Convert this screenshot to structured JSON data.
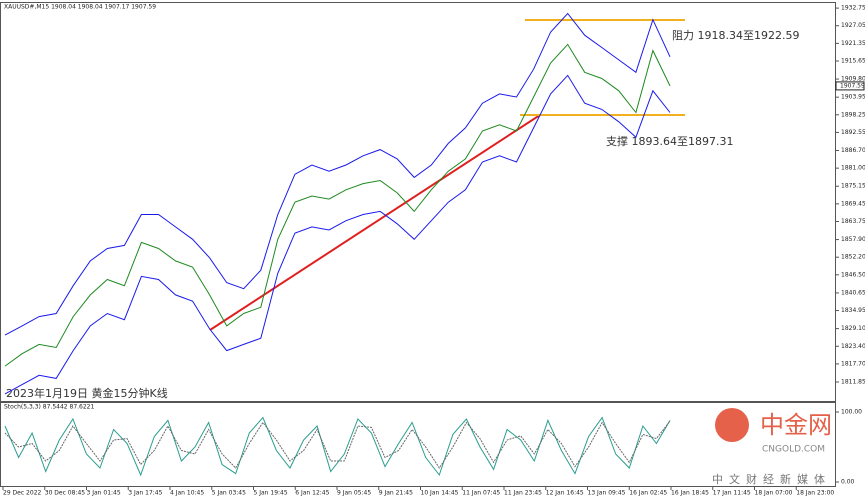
{
  "chart_data": [
    {
      "type": "line",
      "title": "XAUUSD#,M15  1908.04 1908.04 1907.17 1907.59",
      "annotations": [
        "阻力 1918.34至1922.59",
        "支撑 1893.64至1897.31",
        "2023年1月19日 黄金15分钟K线"
      ],
      "x_labels": [
        "29 Dec 2022",
        "30 Dec 08:45",
        "3 Jan 01:45",
        "3 Jan 17:45",
        "4 Jan 10:45",
        "5 Jan 03:45",
        "5 Jan 19:45",
        "6 Jan 12:45",
        "9 Jan 05:45",
        "9 Jan 21:45",
        "10 Jan 14:45",
        "11 Jan 07:45",
        "11 Jan 23:45",
        "12 Jan 16:45",
        "13 Jan 09:45",
        "16 Jan 02:45",
        "16 Jan 18:45",
        "17 Jan 11:45",
        "18 Jan 07:00",
        "18 Jan 23:00"
      ],
      "series": [
        {
          "color": "#1f8a1f",
          "values": [
            1817,
            1821,
            1824,
            1823,
            1833,
            1840,
            1845,
            1843,
            1857,
            1855,
            1851,
            1849,
            1840,
            1830,
            1834,
            1836,
            1858,
            1870,
            1872,
            1871,
            1874,
            1876,
            1877,
            1873,
            1867,
            1874,
            1880,
            1884,
            1893,
            1895,
            1893,
            1904,
            1915,
            1921,
            1912,
            1910,
            1906,
            1899,
            1919,
            1907.59
          ]
        },
        {
          "color": "#1a1aee",
          "values": [
            1827,
            1830,
            1833,
            1834,
            1843,
            1851,
            1855,
            1856,
            1866,
            1866,
            1862,
            1858,
            1852,
            1844,
            1842,
            1848,
            1866,
            1879,
            1882,
            1880,
            1882,
            1885,
            1887,
            1884,
            1878,
            1882,
            1889,
            1894,
            1902,
            1905,
            1904,
            1913,
            1925,
            1931,
            1924,
            1920,
            1916,
            1912,
            1929,
            1917
          ]
        },
        {
          "color": "#1a1aee",
          "values": [
            1808,
            1811,
            1814,
            1813,
            1822,
            1830,
            1834,
            1832,
            1846,
            1845,
            1840,
            1838,
            1829,
            1822,
            1824,
            1826,
            1847,
            1860,
            1862,
            1861,
            1864,
            1866,
            1867,
            1863,
            1858,
            1864,
            1870,
            1874,
            1883,
            1885,
            1883,
            1894,
            1905,
            1911,
            1902,
            1900,
            1896,
            1891,
            1906,
            1899
          ]
        }
      ],
      "ylim": [
        1805.7,
        1934.4
      ],
      "yticks": [
        1932.75,
        1927.05,
        1921.35,
        1915.65,
        {
          "value": 1909.8,
          "label": "1909.80"
        },
        1903.95,
        1898.25,
        1892.55,
        {
          "value": 1886.7,
          "label": "1886.70"
        },
        {
          "value": 1881,
          "label": "1881.00"
        },
        1875.15,
        1869.45,
        1863.75,
        {
          "value": 1857.9,
          "label": "1857.90"
        },
        {
          "value": 1852.2,
          "label": "1852.20"
        },
        {
          "value": 1846.5,
          "label": "1846.50"
        },
        1840.65,
        1834.95,
        {
          "value": 1829.1,
          "label": "1829.10"
        },
        {
          "value": 1823.4,
          "label": "1823.40"
        },
        {
          "value": 1817.7,
          "label": "1817.70"
        },
        1811.85
      ]
    },
    {
      "type": "line",
      "title": "Stoch(5,3,3) 87.5442 87.6221",
      "series": [
        {
          "color": "#2a9d8f",
          "values": [
            80,
            35,
            70,
            15,
            60,
            90,
            40,
            20,
            75,
            55,
            10,
            65,
            88,
            30,
            50,
            85,
            25,
            12,
            70,
            92,
            45,
            20,
            60,
            80,
            15,
            40,
            90,
            70,
            22,
            55,
            85,
            35,
            10,
            68,
            90,
            50,
            18,
            75,
            60,
            30,
            88,
            45,
            12,
            65,
            92,
            40,
            20,
            80,
            55,
            88
          ]
        },
        {
          "color": "#666666",
          "values": [
            70,
            50,
            55,
            30,
            45,
            80,
            55,
            30,
            60,
            62,
            25,
            45,
            80,
            45,
            40,
            75,
            40,
            20,
            55,
            85,
            60,
            30,
            45,
            75,
            30,
            30,
            80,
            78,
            35,
            45,
            75,
            50,
            20,
            50,
            85,
            62,
            28,
            60,
            66,
            40,
            75,
            55,
            22,
            50,
            85,
            55,
            28,
            68,
            62,
            87
          ]
        }
      ],
      "ylim": [
        0,
        100
      ],
      "yticks": [
        {
          "value": 100,
          "label": "100.00"
        },
        {
          "value": 0,
          "label": "0.00"
        }
      ]
    }
  ],
  "watermark": {
    "brand": "中金网",
    "site": "CNGOLD.COM",
    "slogan": "中文财经新媒体"
  }
}
